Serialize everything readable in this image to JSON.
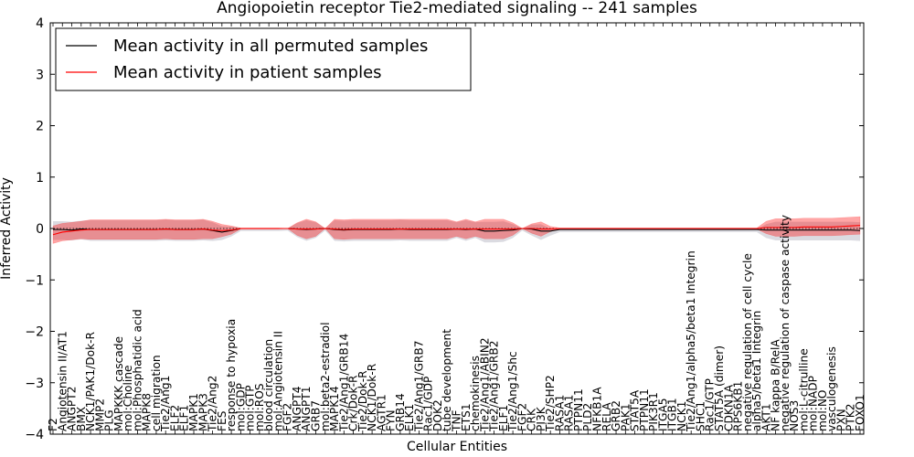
{
  "chart_data": {
    "type": "line",
    "title": "Angiopoietin receptor Tie2-mediated signaling -- 241 samples",
    "xlabel": "Cellular Entities",
    "ylabel": "Inferred Activity",
    "ylim": [
      -4,
      4
    ],
    "yticks": [
      -4,
      -3,
      -2,
      -1,
      0,
      1,
      2,
      3,
      4
    ],
    "legend": {
      "position": "top-left",
      "entries": [
        {
          "label": "Mean activity in all permuted samples",
          "color": "#000000"
        },
        {
          "label": "Mean activity in patient samples",
          "color": "#ff0000"
        }
      ]
    },
    "categories": [
      "F2",
      "Angiotensin II/AT1",
      "ANGPT2",
      "BMX",
      "NCK1/PAK1/Dok-R",
      "MMP2",
      "PLG",
      "MAPKKK cascade",
      "mol:Choline",
      "mol:Phosphatidic acid",
      "MAPK8",
      "cell migration",
      "Tie2/Ang1",
      "ELF2",
      "ELF1",
      "MAPK1",
      "MAPK3",
      "Tie2/Ang2",
      "FES",
      "response to hypoxia",
      "mol:GDP",
      "mol:GTP",
      "mol:ROS",
      "blood circulation",
      "mol:Angiotensin II",
      "FGF2",
      "ANGPT4",
      "ANGPT1",
      "GRB7",
      "mol:beta2-estradiol",
      "MAPK14",
      "Tie2/Ang1/GRB14",
      "Crk/Dok-R",
      "Tie2/Dok-R",
      "NCK1/Dok-R",
      "AGTR1",
      "FYN",
      "GRB14",
      "ELK1",
      "Tie2/Ang1/GRB7",
      "Rac1/GDP",
      "DOK2",
      "tube development",
      "TNF",
      "ETS1",
      "chemokinesis",
      "Tie2/Ang1/ABIN2",
      "Tie2/Ang1/GRB2",
      "ELF1",
      "Tie2/Ang1/Shc",
      "FGF2",
      "CRK",
      "PI3K",
      "Tie2/SHP2",
      "RASA1",
      "RASA1",
      "PTPN11",
      "PLD2",
      "NFKB1A",
      "RELA",
      "GRB2",
      "PAK1",
      "STAT5A",
      "PTPN11",
      "PIK3R1",
      "ITGA5",
      "ITGB1",
      "NCK1",
      "Tie2/Ang1/alpha5/beta1 Integrin",
      "SHC1",
      "Rac1/GTP",
      "STAT5A (dimer)",
      "CDKN1A",
      "RPS6KB1",
      "negative regulation of cell cycle",
      "alpha5/beta1 Integrin",
      "AKT1",
      "NF kappa B/RelA",
      "negative regulation of caspase activity",
      "NOS3",
      "mol:L-citrulline",
      "mol:NADP",
      "mol:NO",
      "vasculogenesis",
      "PXN",
      "PTK2",
      "FOXO1"
    ],
    "series": [
      {
        "name": "Mean activity in all permuted samples",
        "color": "#000000",
        "linestyle": "solid",
        "values": [
          -0.02,
          -0.02,
          -0.03,
          -0.01,
          -0.02,
          -0.02,
          -0.02,
          -0.02,
          -0.02,
          -0.02,
          -0.02,
          -0.02,
          -0.01,
          -0.02,
          -0.02,
          -0.02,
          -0.01,
          -0.04,
          -0.07,
          -0.04,
          0.0,
          0.0,
          0.0,
          0.0,
          0.0,
          0.0,
          -0.01,
          -0.02,
          -0.01,
          0.0,
          -0.02,
          -0.03,
          -0.02,
          -0.02,
          -0.02,
          -0.02,
          -0.02,
          -0.01,
          -0.02,
          -0.02,
          -0.02,
          -0.02,
          -0.02,
          -0.01,
          -0.02,
          -0.01,
          -0.05,
          -0.05,
          -0.04,
          -0.03,
          0.0,
          -0.01,
          -0.05,
          -0.05,
          -0.02,
          -0.02,
          -0.02,
          -0.02,
          -0.02,
          -0.02,
          -0.02,
          -0.02,
          -0.02,
          -0.02,
          -0.02,
          -0.02,
          -0.02,
          -0.02,
          -0.02,
          -0.02,
          -0.02,
          -0.02,
          -0.02,
          -0.02,
          -0.02,
          -0.02,
          -0.03,
          -0.03,
          -0.03,
          -0.03,
          -0.03,
          -0.03,
          -0.03,
          -0.03,
          -0.03,
          -0.03,
          -0.04
        ]
      },
      {
        "name": "Mean activity in patient samples",
        "color": "#ff0000",
        "linestyle": "solid",
        "values": [
          -0.12,
          -0.07,
          -0.05,
          -0.03,
          -0.02,
          -0.02,
          -0.02,
          -0.02,
          -0.02,
          -0.02,
          -0.02,
          -0.02,
          -0.01,
          -0.02,
          -0.02,
          -0.02,
          -0.01,
          -0.03,
          -0.04,
          -0.03,
          0.0,
          0.0,
          0.0,
          0.0,
          0.0,
          0.0,
          -0.01,
          -0.01,
          -0.01,
          0.0,
          -0.01,
          -0.02,
          -0.01,
          -0.01,
          -0.01,
          -0.01,
          -0.01,
          -0.01,
          -0.01,
          -0.01,
          -0.01,
          -0.01,
          -0.01,
          -0.01,
          -0.01,
          -0.01,
          -0.01,
          -0.01,
          -0.01,
          -0.01,
          0.0,
          0.0,
          -0.01,
          -0.01,
          0.0,
          0.0,
          0.0,
          0.0,
          0.0,
          0.0,
          0.0,
          0.0,
          0.0,
          0.0,
          0.0,
          0.0,
          0.0,
          0.0,
          0.0,
          0.0,
          0.0,
          0.0,
          0.0,
          0.0,
          0.0,
          0.0,
          0.02,
          0.02,
          0.02,
          0.02,
          0.03,
          0.03,
          0.03,
          0.03,
          0.04,
          0.05,
          0.06
        ]
      }
    ],
    "band_halfwidth": [
      0.17,
      0.17,
      0.17,
      0.17,
      0.19,
      0.19,
      0.19,
      0.19,
      0.19,
      0.19,
      0.19,
      0.19,
      0.19,
      0.19,
      0.19,
      0.19,
      0.19,
      0.17,
      0.12,
      0.08,
      0.01,
      0.01,
      0.01,
      0.01,
      0.01,
      0.0,
      0.12,
      0.19,
      0.14,
      0.0,
      0.19,
      0.19,
      0.19,
      0.19,
      0.19,
      0.19,
      0.19,
      0.19,
      0.19,
      0.19,
      0.19,
      0.19,
      0.19,
      0.14,
      0.19,
      0.14,
      0.19,
      0.19,
      0.19,
      0.12,
      0.0,
      0.09,
      0.14,
      0.05,
      0.01,
      0.01,
      0.01,
      0.01,
      0.01,
      0.01,
      0.01,
      0.01,
      0.01,
      0.01,
      0.01,
      0.01,
      0.01,
      0.01,
      0.01,
      0.01,
      0.01,
      0.01,
      0.01,
      0.01,
      0.01,
      0.01,
      0.12,
      0.17,
      0.17,
      0.17,
      0.17,
      0.17,
      0.17,
      0.17,
      0.17,
      0.17,
      0.17
    ]
  }
}
